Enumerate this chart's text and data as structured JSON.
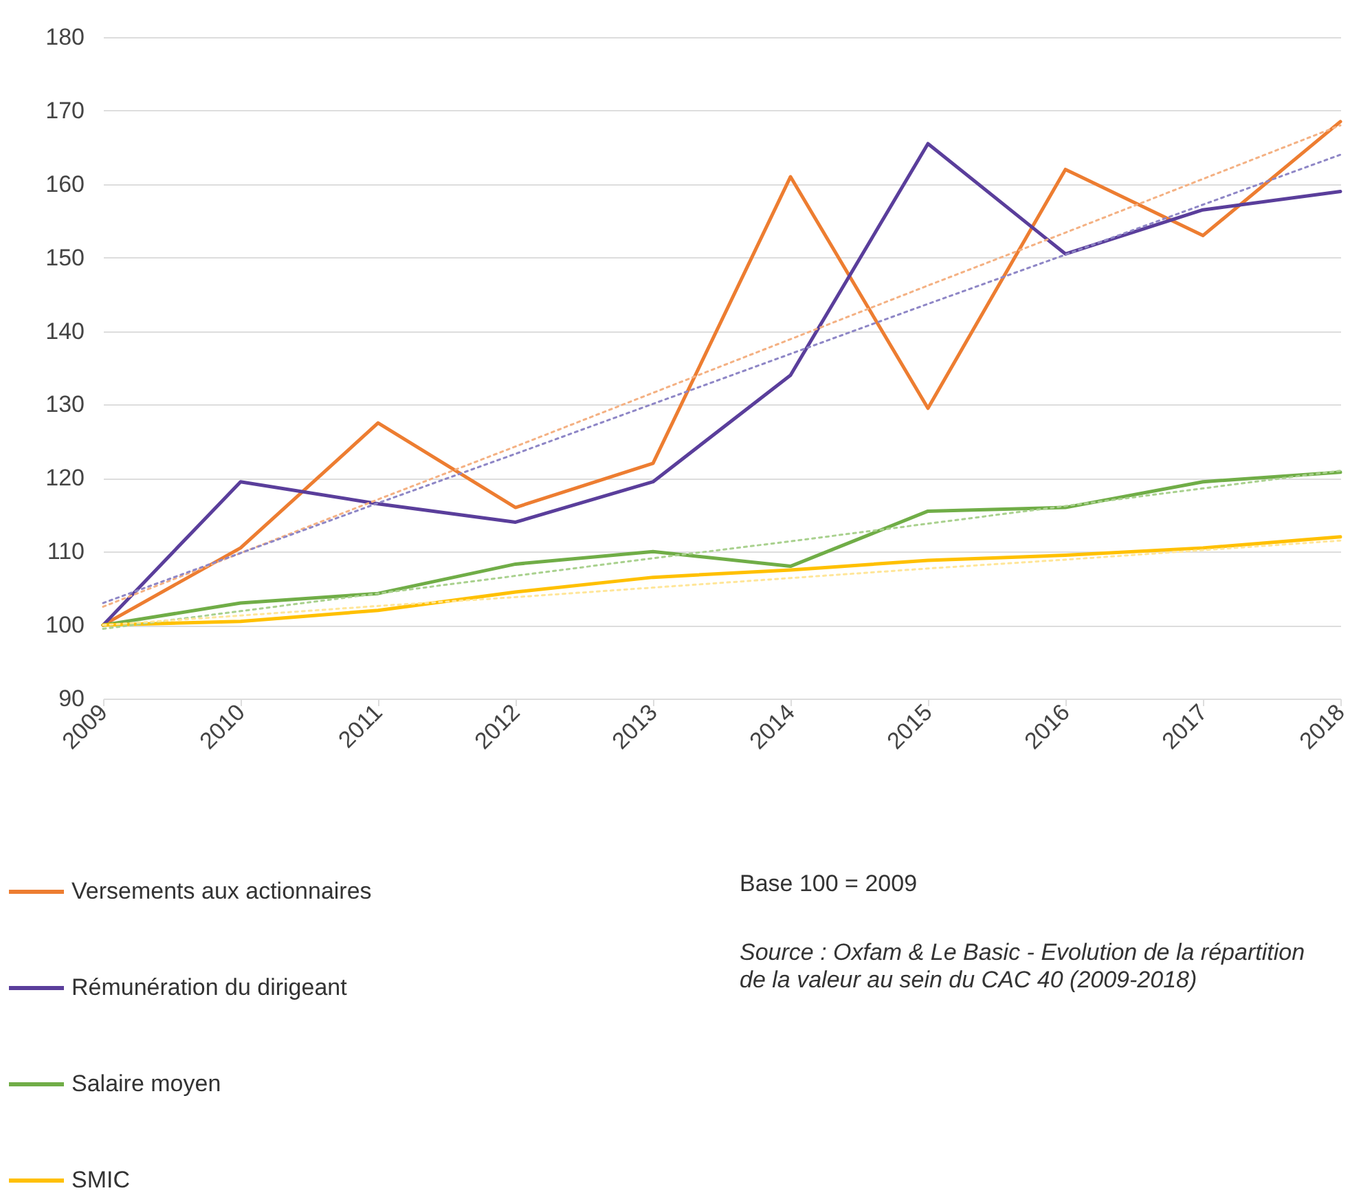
{
  "chart_data": {
    "type": "line",
    "categories": [
      "2009",
      "2010",
      "2011",
      "2012",
      "2013",
      "2014",
      "2015",
      "2016",
      "2017",
      "2018"
    ],
    "series": [
      {
        "name": "Versements aux actionnaires",
        "color": "#ed7d31",
        "values": [
          100,
          110.5,
          127.5,
          116,
          122,
          161,
          129.5,
          162,
          153,
          168.5
        ]
      },
      {
        "name": "Rémunération du dirigeant",
        "color": "#5a3e9b",
        "values": [
          100,
          119.5,
          116.5,
          114,
          119.5,
          134,
          165.5,
          150.5,
          156.5,
          159
        ]
      },
      {
        "name": "Salaire moyen",
        "color": "#70ad47",
        "values": [
          100,
          103,
          104.3,
          108.3,
          110,
          108,
          115.5,
          116,
          119.5,
          120.8
        ]
      },
      {
        "name": "SMIC",
        "color": "#ffc000",
        "values": [
          100,
          100.5,
          102,
          104.5,
          106.5,
          107.5,
          108.8,
          109.5,
          110.5,
          112
        ]
      },
      {
        "type": "line",
        "color": "#f4b183",
        "line_style": "dotted",
        "values": [
          102.5,
          109.8,
          117.1,
          124.3,
          131.6,
          138.9,
          146.2,
          153.4,
          160.7,
          168
        ]
      },
      {
        "type": "line",
        "color": "#8e86c6",
        "line_style": "dotted",
        "values": [
          103,
          109.8,
          116.6,
          123.3,
          130.1,
          136.9,
          143.7,
          150.4,
          157.2,
          164
        ]
      },
      {
        "type": "line",
        "color": "#a9d18e",
        "line_style": "dotted",
        "values": [
          99.5,
          101.9,
          104.3,
          106.7,
          109.1,
          111.4,
          113.8,
          116.2,
          118.6,
          121
        ]
      },
      {
        "type": "line",
        "color": "#ffe699",
        "line_style": "dotted",
        "values": [
          100,
          101.3,
          102.6,
          103.8,
          105.1,
          106.4,
          107.7,
          108.9,
          110.2,
          111.5
        ]
      }
    ],
    "ylim": [
      90,
      180
    ],
    "yticks": [
      90,
      100,
      110,
      120,
      130,
      140,
      150,
      160,
      170,
      180
    ],
    "grid": "y",
    "legend": "bottom left",
    "line_style": "solid",
    "annotations": [
      "Base 100 = 2009",
      "Source : Oxfam & Le Basic -  Evolution de la répartition de la valeur au sein du CAC 40 (2009-2018)"
    ]
  }
}
